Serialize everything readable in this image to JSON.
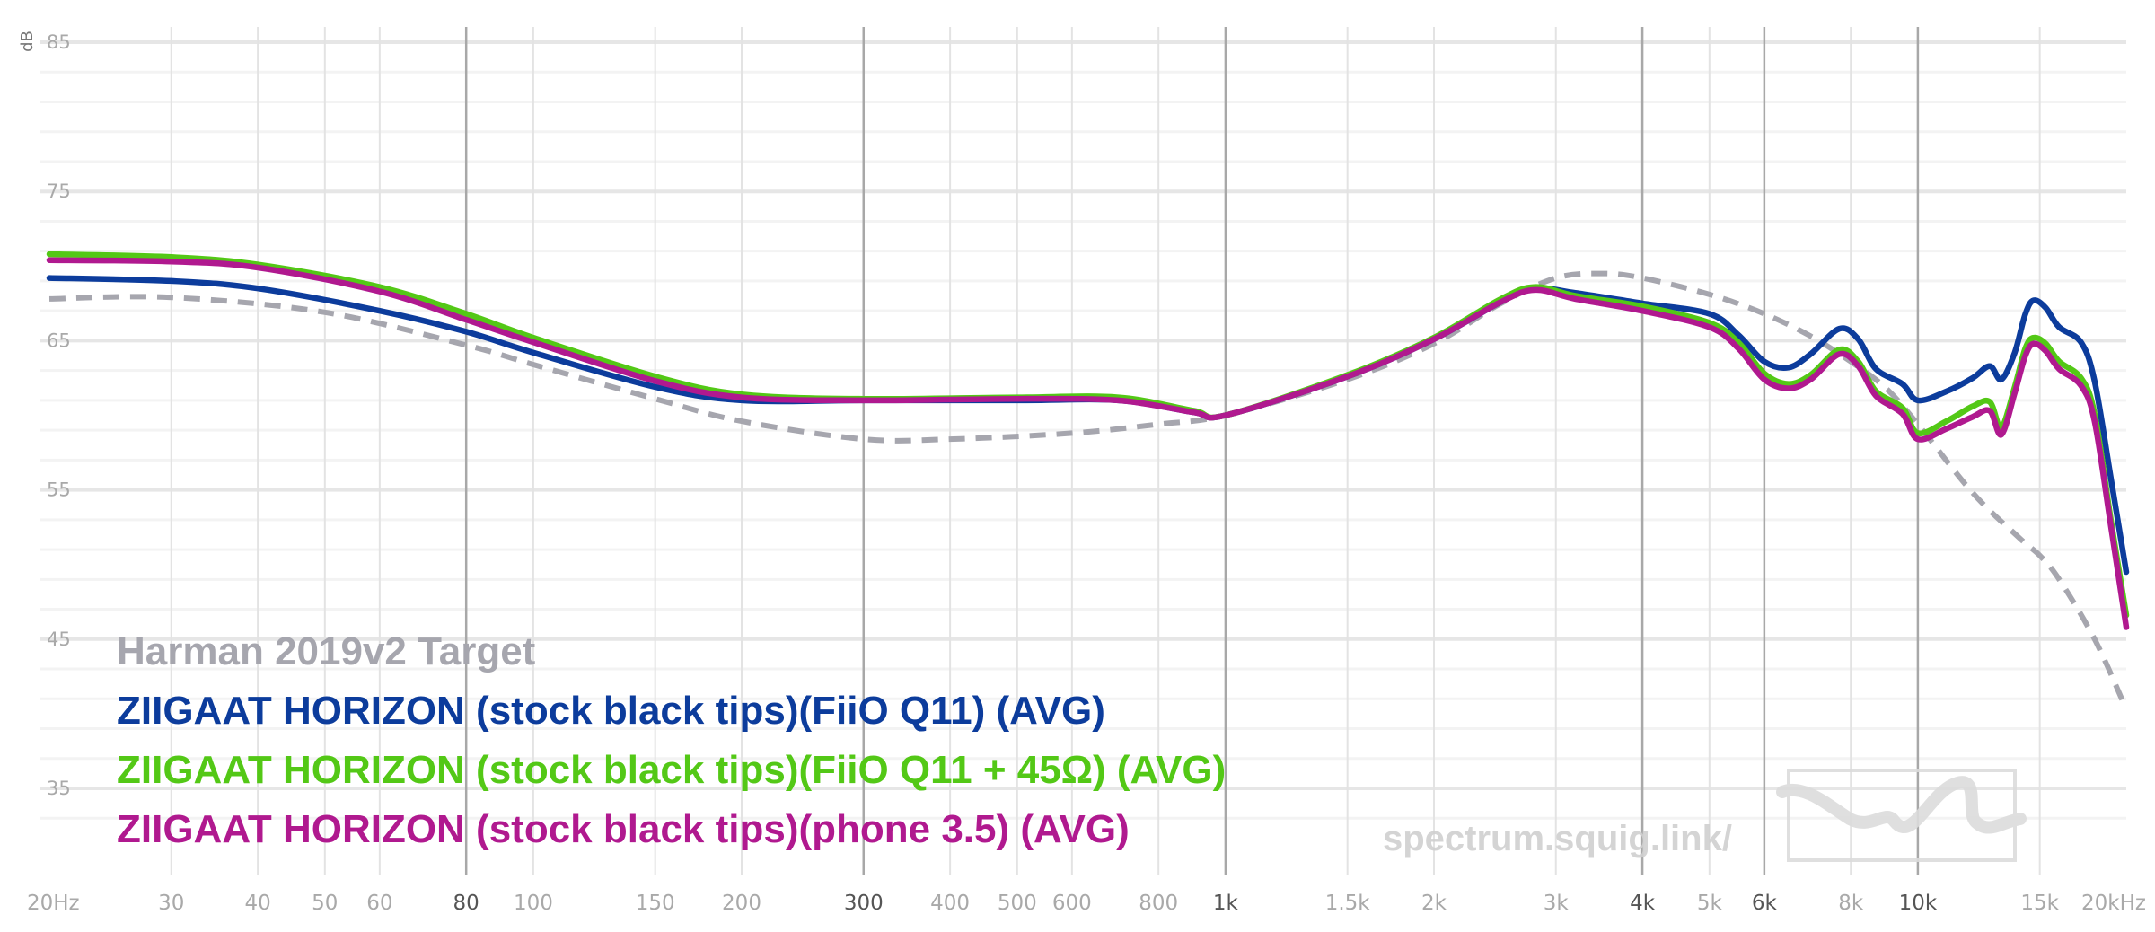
{
  "chart_data": {
    "type": "line",
    "x_scale": "log",
    "ylabel": "dB",
    "ylim": [
      30,
      87
    ],
    "xlim": [
      20,
      20000
    ],
    "grid": true,
    "legend_placement": "bottom-left",
    "watermark": "spectrum.squig.link/",
    "y_ticks": [
      "85",
      "75",
      "65",
      "55",
      "45",
      "35"
    ],
    "x_ticks": [
      {
        "f": 20,
        "label": "20Hz",
        "major": false
      },
      {
        "f": 30,
        "label": "30",
        "major": false
      },
      {
        "f": 40,
        "label": "40",
        "major": false
      },
      {
        "f": 50,
        "label": "50",
        "major": false
      },
      {
        "f": 60,
        "label": "60",
        "major": false
      },
      {
        "f": 80,
        "label": "80",
        "major": true
      },
      {
        "f": 100,
        "label": "100",
        "major": false
      },
      {
        "f": 150,
        "label": "150",
        "major": false
      },
      {
        "f": 200,
        "label": "200",
        "major": false
      },
      {
        "f": 300,
        "label": "300",
        "major": true
      },
      {
        "f": 400,
        "label": "400",
        "major": false
      },
      {
        "f": 500,
        "label": "500",
        "major": false
      },
      {
        "f": 600,
        "label": "600",
        "major": false
      },
      {
        "f": 800,
        "label": "800",
        "major": false
      },
      {
        "f": 1000,
        "label": "1k",
        "major": true
      },
      {
        "f": 1500,
        "label": "1.5k",
        "major": false
      },
      {
        "f": 2000,
        "label": "2k",
        "major": false
      },
      {
        "f": 3000,
        "label": "3k",
        "major": false
      },
      {
        "f": 4000,
        "label": "4k",
        "major": true
      },
      {
        "f": 5000,
        "label": "5k",
        "major": false
      },
      {
        "f": 6000,
        "label": "6k",
        "major": true
      },
      {
        "f": 8000,
        "label": "8k",
        "major": false
      },
      {
        "f": 10000,
        "label": "10k",
        "major": true
      },
      {
        "f": 15000,
        "label": "15k",
        "major": false
      },
      {
        "f": 20000,
        "label": "20kHz",
        "major": false
      }
    ],
    "series": [
      {
        "name": "Harman 2019v2 Target",
        "color": "#a6a6ae",
        "dashed": true,
        "points": [
          [
            20,
            67.8
          ],
          [
            30,
            67.9
          ],
          [
            50,
            66.9
          ],
          [
            80,
            64.7
          ],
          [
            100,
            63.4
          ],
          [
            150,
            61.1
          ],
          [
            200,
            59.6
          ],
          [
            300,
            58.4
          ],
          [
            400,
            58.4
          ],
          [
            600,
            58.8
          ],
          [
            800,
            59.4
          ],
          [
            1000,
            60.0
          ],
          [
            1500,
            62.4
          ],
          [
            2000,
            64.8
          ],
          [
            2500,
            67.5
          ],
          [
            3000,
            69.2
          ],
          [
            3500,
            69.5
          ],
          [
            4000,
            69.2
          ],
          [
            5000,
            68.1
          ],
          [
            6000,
            66.8
          ],
          [
            7000,
            65.3
          ],
          [
            8000,
            63.6
          ],
          [
            9000,
            61.8
          ],
          [
            10000,
            59.4
          ],
          [
            12000,
            54.8
          ],
          [
            14000,
            51.8
          ],
          [
            15000,
            50.6
          ],
          [
            16000,
            49.0
          ],
          [
            18000,
            45.0
          ],
          [
            20000,
            40.3
          ]
        ]
      },
      {
        "name": "ZIIGAAT HORIZON (stock black tips)(FiiO Q11) (AVG)",
        "color": "#0c3c9c",
        "dashed": false,
        "points": [
          [
            20,
            69.2
          ],
          [
            30,
            69.0
          ],
          [
            40,
            68.5
          ],
          [
            60,
            67.0
          ],
          [
            80,
            65.6
          ],
          [
            100,
            64.2
          ],
          [
            150,
            61.9
          ],
          [
            200,
            61.0
          ],
          [
            300,
            61.0
          ],
          [
            500,
            61.0
          ],
          [
            700,
            61.0
          ],
          [
            900,
            60.2
          ],
          [
            1000,
            60.0
          ],
          [
            1500,
            62.6
          ],
          [
            2000,
            65.1
          ],
          [
            2500,
            67.6
          ],
          [
            2800,
            68.5
          ],
          [
            3200,
            68.2
          ],
          [
            4000,
            67.5
          ],
          [
            5000,
            66.8
          ],
          [
            5500,
            65.4
          ],
          [
            6000,
            63.6
          ],
          [
            6500,
            63.2
          ],
          [
            7000,
            64.1
          ],
          [
            7700,
            65.8
          ],
          [
            8200,
            65.1
          ],
          [
            8700,
            63.1
          ],
          [
            9500,
            62.1
          ],
          [
            10000,
            61.0
          ],
          [
            11000,
            61.6
          ],
          [
            12000,
            62.5
          ],
          [
            12700,
            63.3
          ],
          [
            13200,
            62.4
          ],
          [
            13800,
            64.2
          ],
          [
            14300,
            66.8
          ],
          [
            14700,
            67.7
          ],
          [
            15300,
            67.2
          ],
          [
            16000,
            65.9
          ],
          [
            17200,
            64.9
          ],
          [
            18000,
            62.3
          ],
          [
            19000,
            55.8
          ],
          [
            20000,
            49.5
          ]
        ]
      },
      {
        "name": "ZIIGAAT HORIZON (stock black tips)(FiiO Q11 + 45Ω) (AVG)",
        "color": "#53c816",
        "dashed": false,
        "points": [
          [
            20,
            70.8
          ],
          [
            30,
            70.6
          ],
          [
            40,
            70.1
          ],
          [
            60,
            68.6
          ],
          [
            80,
            66.8
          ],
          [
            100,
            65.2
          ],
          [
            150,
            62.6
          ],
          [
            200,
            61.4
          ],
          [
            300,
            61.1
          ],
          [
            500,
            61.2
          ],
          [
            700,
            61.2
          ],
          [
            900,
            60.3
          ],
          [
            1000,
            60.0
          ],
          [
            1500,
            62.7
          ],
          [
            2000,
            65.2
          ],
          [
            2500,
            67.8
          ],
          [
            2800,
            68.6
          ],
          [
            3200,
            68.0
          ],
          [
            4000,
            67.3
          ],
          [
            5000,
            66.2
          ],
          [
            5500,
            64.9
          ],
          [
            6000,
            62.8
          ],
          [
            6500,
            62.1
          ],
          [
            7000,
            62.7
          ],
          [
            7700,
            64.4
          ],
          [
            8200,
            63.6
          ],
          [
            8700,
            61.6
          ],
          [
            9500,
            60.5
          ],
          [
            10000,
            58.8
          ],
          [
            11000,
            59.6
          ],
          [
            12000,
            60.6
          ],
          [
            12700,
            60.9
          ],
          [
            13200,
            59.2
          ],
          [
            13800,
            61.9
          ],
          [
            14300,
            64.5
          ],
          [
            14700,
            65.2
          ],
          [
            15300,
            64.8
          ],
          [
            16000,
            63.6
          ],
          [
            17200,
            62.5
          ],
          [
            18000,
            60.1
          ],
          [
            19000,
            53.0
          ],
          [
            20000,
            46.6
          ]
        ]
      },
      {
        "name": "ZIIGAAT HORIZON (stock black tips)(phone 3.5) (AVG)",
        "color": "#b0198f",
        "dashed": false,
        "points": [
          [
            20,
            70.4
          ],
          [
            30,
            70.3
          ],
          [
            40,
            69.9
          ],
          [
            60,
            68.3
          ],
          [
            80,
            66.4
          ],
          [
            100,
            64.9
          ],
          [
            150,
            62.3
          ],
          [
            200,
            61.2
          ],
          [
            300,
            61.0
          ],
          [
            500,
            61.1
          ],
          [
            700,
            61.0
          ],
          [
            900,
            60.2
          ],
          [
            1000,
            60.0
          ],
          [
            1500,
            62.6
          ],
          [
            2000,
            65.1
          ],
          [
            2500,
            67.6
          ],
          [
            2800,
            68.4
          ],
          [
            3200,
            67.8
          ],
          [
            4000,
            67.0
          ],
          [
            5000,
            65.9
          ],
          [
            5500,
            64.5
          ],
          [
            6000,
            62.4
          ],
          [
            6500,
            61.8
          ],
          [
            7000,
            62.4
          ],
          [
            7700,
            64.1
          ],
          [
            8200,
            63.3
          ],
          [
            8700,
            61.3
          ],
          [
            9500,
            60.1
          ],
          [
            10000,
            58.4
          ],
          [
            11000,
            59.1
          ],
          [
            12000,
            59.9
          ],
          [
            12700,
            60.3
          ],
          [
            13200,
            58.7
          ],
          [
            13800,
            61.5
          ],
          [
            14300,
            64.0
          ],
          [
            14700,
            64.8
          ],
          [
            15300,
            64.3
          ],
          [
            16000,
            63.1
          ],
          [
            17200,
            62.0
          ],
          [
            18000,
            59.6
          ],
          [
            19000,
            52.6
          ],
          [
            20000,
            45.8
          ]
        ]
      }
    ]
  }
}
